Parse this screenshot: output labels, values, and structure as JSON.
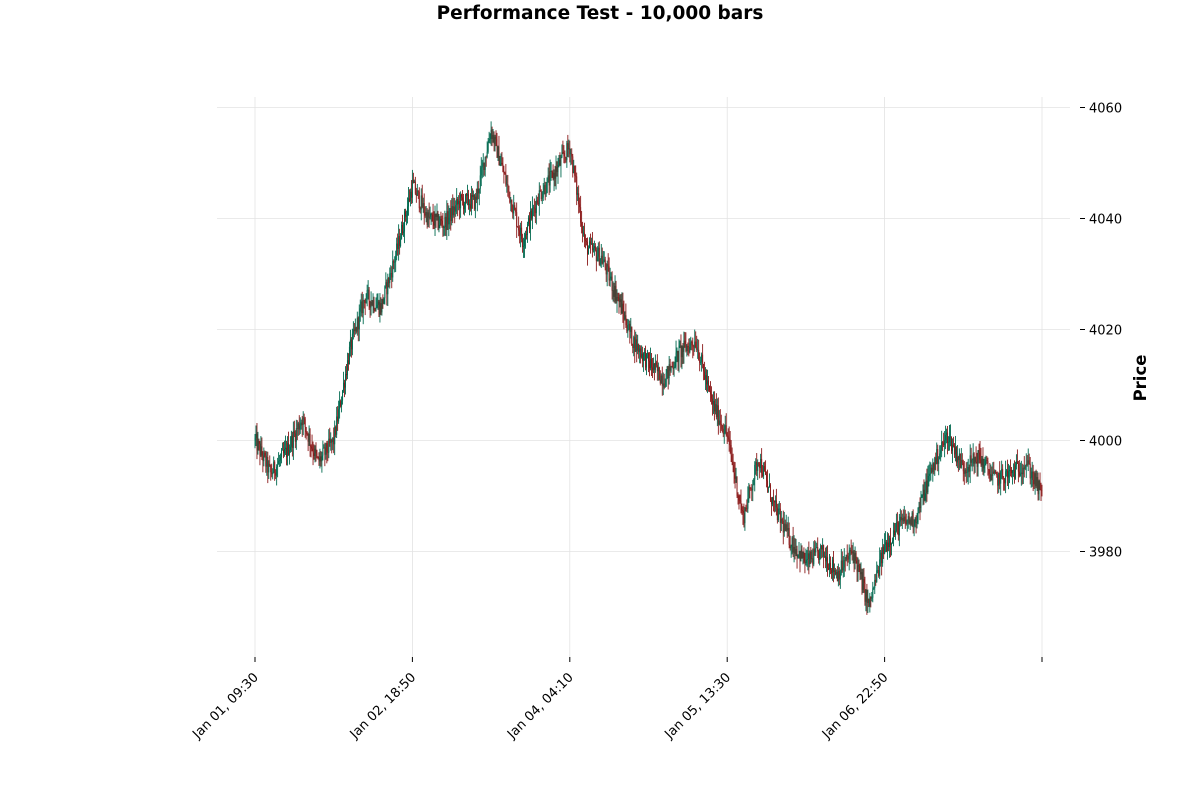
{
  "chart_data": {
    "type": "candlestick",
    "title": "Performance Test - 10,000 bars",
    "xlabel": "",
    "ylabel": "Price",
    "bar_count": 10000,
    "bar_interval_minutes": 1,
    "x_range": [
      "Jan 01, 09:30",
      "Jan 08, 08:09"
    ],
    "ylim": [
      3962,
      4062
    ],
    "grid": true,
    "y_axis_side": "right",
    "x_ticks": [
      "Jan 01, 09:30",
      "Jan 02, 18:50",
      "Jan 04, 04:10",
      "Jan 05, 13:30",
      "Jan 06, 22:50",
      ""
    ],
    "y_ticks": [
      3980,
      4000,
      4020,
      4040,
      4060
    ],
    "colors": {
      "up": "#00694f",
      "down": "#8b1a1a",
      "grid": "#e3e3e3"
    },
    "price_path": [
      [
        0,
        4000
      ],
      [
        10,
        3994
      ],
      [
        20,
        3998
      ],
      [
        30,
        4004
      ],
      [
        40,
        3996
      ],
      [
        50,
        4000
      ],
      [
        60,
        4016
      ],
      [
        70,
        4026
      ],
      [
        80,
        4024
      ],
      [
        90,
        4034
      ],
      [
        100,
        4046
      ],
      [
        110,
        4040
      ],
      [
        120,
        4039
      ],
      [
        130,
        4043
      ],
      [
        140,
        4043
      ],
      [
        150,
        4056
      ],
      [
        160,
        4046
      ],
      [
        170,
        4036
      ],
      [
        180,
        4044
      ],
      [
        190,
        4048
      ],
      [
        200,
        4053
      ],
      [
        210,
        4035
      ],
      [
        220,
        4033
      ],
      [
        230,
        4026
      ],
      [
        240,
        4018
      ],
      [
        250,
        4014
      ],
      [
        260,
        4011
      ],
      [
        270,
        4016
      ],
      [
        280,
        4018
      ],
      [
        290,
        4007
      ],
      [
        300,
        4001
      ],
      [
        310,
        3986
      ],
      [
        320,
        3997
      ],
      [
        330,
        3988
      ],
      [
        340,
        3982
      ],
      [
        350,
        3978
      ],
      [
        360,
        3980
      ],
      [
        370,
        3976
      ],
      [
        380,
        3980
      ],
      [
        390,
        3970
      ],
      [
        400,
        3981
      ],
      [
        410,
        3985
      ],
      [
        420,
        3986
      ],
      [
        430,
        3995
      ],
      [
        440,
        4001
      ],
      [
        450,
        3995
      ],
      [
        460,
        3997
      ],
      [
        470,
        3993
      ],
      [
        480,
        3994
      ],
      [
        490,
        3996
      ],
      [
        500,
        3990
      ]
    ]
  }
}
